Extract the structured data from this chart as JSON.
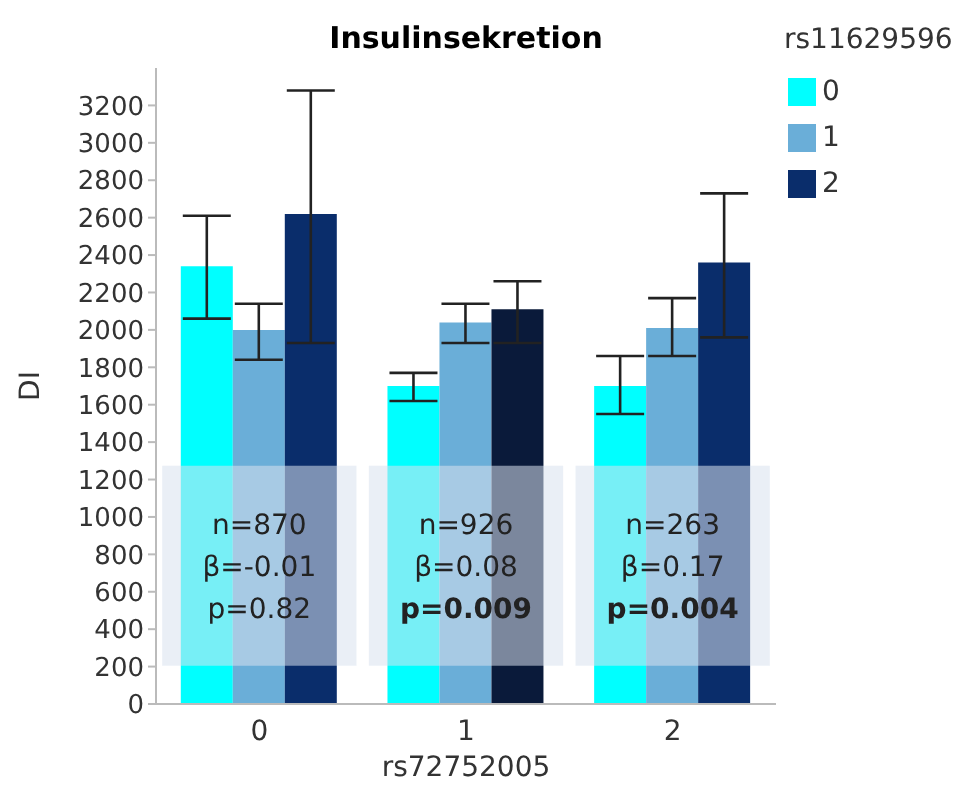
{
  "chart_data": {
    "type": "bar",
    "title": "Insulinsekretion",
    "xlabel": "rs72752005",
    "ylabel": "DI",
    "legend_title": "rs11629596",
    "legend": "top right",
    "categories": [
      "0",
      "1",
      "2"
    ],
    "series": [
      {
        "name": "0",
        "color": "#00ffff",
        "values": [
          2340,
          1700,
          1700
        ],
        "errors": [
          [
            2060,
            2610
          ],
          [
            1620,
            1770
          ],
          [
            1550,
            1860
          ]
        ]
      },
      {
        "name": "1",
        "color": "#6aaed8",
        "values": [
          2000,
          2040,
          2010
        ],
        "errors": [
          [
            1840,
            2140
          ],
          [
            1930,
            2140
          ],
          [
            1860,
            2170
          ]
        ]
      },
      {
        "name": "2",
        "color": "#0a2d6b",
        "colors": [
          "#0a2d6b",
          "#0a1a3a",
          "#0a2d6b"
        ],
        "values": [
          2620,
          2110,
          2360
        ],
        "errors": [
          [
            1930,
            3280
          ],
          [
            1930,
            2260
          ],
          [
            1960,
            2730
          ]
        ]
      }
    ],
    "ylim": [
      0,
      3400
    ],
    "yticks": [
      0,
      200,
      400,
      600,
      800,
      1000,
      1200,
      1400,
      1600,
      1800,
      2000,
      2200,
      2400,
      2600,
      2800,
      3000,
      3200
    ],
    "annotations": [
      "n=870\nβ=-0.01\np=0.82",
      "n=926\nβ=0.08\np=0.009",
      "n=263\nβ=0.17\np=0.004"
    ]
  }
}
